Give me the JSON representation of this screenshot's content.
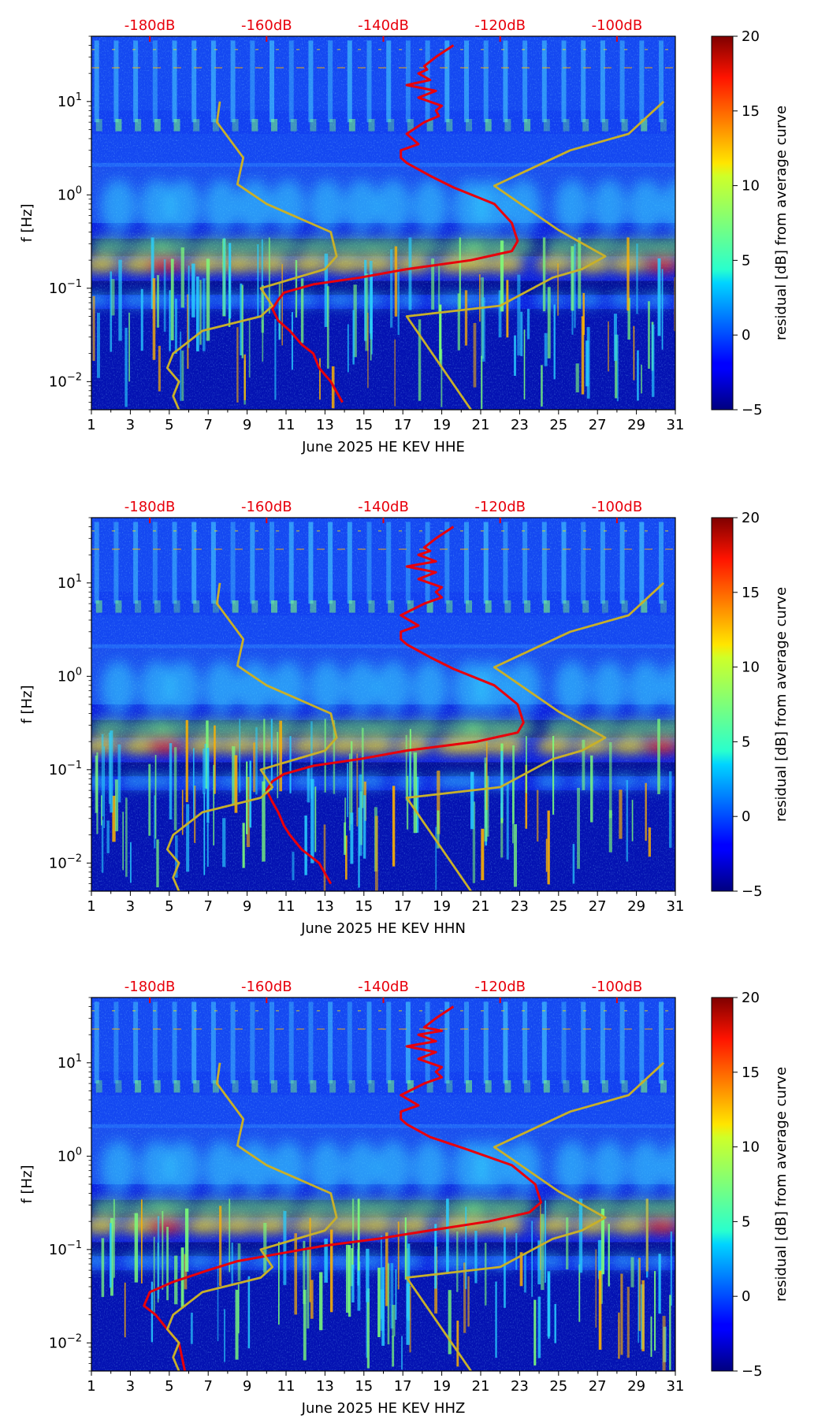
{
  "figure": {
    "colorbar": {
      "label": "residual [dB] from average curve",
      "min": -5,
      "max": 20,
      "ticks": [
        -5,
        0,
        5,
        10,
        15,
        20
      ],
      "tick_labels": [
        "−5",
        "0",
        "5",
        "10",
        "15",
        "20"
      ],
      "colormap": "jet"
    }
  },
  "chart_data": [
    {
      "type": "heatmap",
      "title": "",
      "xlabel": "June 2025 HE KEV  HHE",
      "ylabel": "f [Hz]",
      "x_range": [
        1,
        31
      ],
      "x_ticks": [
        1,
        3,
        5,
        7,
        9,
        11,
        13,
        15,
        17,
        19,
        21,
        23,
        25,
        27,
        29,
        31
      ],
      "y_scale": "log",
      "y_range": [
        0.005,
        50
      ],
      "y_ticks": [
        {
          "value": 0.01,
          "base": "10",
          "exp": "−2"
        },
        {
          "value": 0.1,
          "base": "10",
          "exp": "−1"
        },
        {
          "value": 1,
          "base": "10",
          "exp": "0"
        },
        {
          "value": 10,
          "base": "10",
          "exp": "1"
        }
      ],
      "top_axis": {
        "color": "#e8000b",
        "range_db": [
          -190,
          -90
        ],
        "ticks": [
          -180,
          -160,
          -140,
          -120,
          -100
        ],
        "tick_labels": [
          "-180dB",
          "-160dB",
          "-140dB",
          "-120dB",
          "-100dB"
        ]
      },
      "series": [
        {
          "name": "average PSD",
          "axis": "dB",
          "color": "#e8000b",
          "x": [
            -128,
            -131,
            -133,
            -132.5,
            -134,
            -132,
            -136,
            -131,
            -134,
            -130,
            -131,
            -130.5,
            -133,
            -136,
            -134,
            -137,
            -137,
            -136,
            -132,
            -128,
            -121,
            -118,
            -117,
            -118,
            -125,
            -136,
            -144,
            -152,
            -157,
            -158,
            -159,
            -158,
            -156,
            -154,
            -152,
            -151,
            -149,
            -147
          ],
          "y": [
            40,
            30,
            24,
            22,
            20,
            17,
            15,
            13,
            11,
            9,
            8,
            7,
            6,
            4.5,
            3.5,
            3,
            2.5,
            2.2,
            1.6,
            1.2,
            0.8,
            0.5,
            0.32,
            0.25,
            0.2,
            0.16,
            0.13,
            0.11,
            0.09,
            0.075,
            0.06,
            0.045,
            0.035,
            0.025,
            0.02,
            0.014,
            0.01,
            0.006
          ]
        },
        {
          "name": "reference low-noise curve",
          "axis": "dB",
          "color": "#c8b02a",
          "x": [
            -168,
            -168.5,
            -164,
            -165,
            -160,
            -149,
            -148,
            -150,
            -161,
            -159,
            -161,
            -171,
            -176,
            -177,
            -175,
            -176,
            -175
          ],
          "y": [
            10,
            6,
            2.5,
            1.3,
            0.8,
            0.4,
            0.22,
            0.16,
            0.1,
            0.065,
            0.05,
            0.035,
            0.02,
            0.014,
            0.01,
            0.007,
            0.005
          ]
        },
        {
          "name": "reference high-noise curve",
          "axis": "dB",
          "color": "#c8b02a",
          "x": [
            -92,
            -98,
            -108,
            -121,
            -110,
            -102,
            -106,
            -111,
            -120,
            -136,
            -125
          ],
          "y": [
            10,
            4.5,
            3,
            1.25,
            0.42,
            0.22,
            0.16,
            0.13,
            0.065,
            0.05,
            0.005
          ]
        }
      ]
    },
    {
      "type": "heatmap",
      "title": "",
      "xlabel": "June 2025 HE KEV  HHN",
      "ylabel": "f [Hz]",
      "x_range": [
        1,
        31
      ],
      "x_ticks": [
        1,
        3,
        5,
        7,
        9,
        11,
        13,
        15,
        17,
        19,
        21,
        23,
        25,
        27,
        29,
        31
      ],
      "y_scale": "log",
      "y_range": [
        0.005,
        50
      ],
      "y_ticks": [
        {
          "value": 0.01,
          "base": "10",
          "exp": "−2"
        },
        {
          "value": 0.1,
          "base": "10",
          "exp": "−1"
        },
        {
          "value": 1,
          "base": "10",
          "exp": "0"
        },
        {
          "value": 10,
          "base": "10",
          "exp": "1"
        }
      ],
      "top_axis": {
        "color": "#e8000b",
        "range_db": [
          -190,
          -90
        ],
        "ticks": [
          -180,
          -160,
          -140,
          -120,
          -100
        ],
        "tick_labels": [
          "-180dB",
          "-160dB",
          "-140dB",
          "-120dB",
          "-100dB"
        ]
      },
      "series": [
        {
          "name": "average PSD",
          "axis": "dB",
          "color": "#e8000b",
          "x": [
            -128,
            -131,
            -133,
            -132,
            -134,
            -131,
            -136,
            -131,
            -134,
            -130,
            -131,
            -130,
            -133,
            -137,
            -134,
            -137,
            -137,
            -136,
            -132,
            -128,
            -121,
            -117,
            -116,
            -117,
            -124,
            -136,
            -144,
            -152,
            -157,
            -159,
            -160,
            -159,
            -158,
            -157,
            -156,
            -154,
            -151,
            -149
          ],
          "y": [
            40,
            30,
            24,
            22,
            20,
            17,
            15,
            13,
            11,
            9,
            8,
            7,
            6,
            4.5,
            3.5,
            3,
            2.5,
            2.2,
            1.6,
            1.2,
            0.8,
            0.5,
            0.32,
            0.25,
            0.2,
            0.16,
            0.13,
            0.11,
            0.09,
            0.075,
            0.06,
            0.045,
            0.035,
            0.025,
            0.02,
            0.014,
            0.01,
            0.006
          ]
        },
        {
          "name": "reference low-noise curve",
          "axis": "dB",
          "color": "#c8b02a",
          "x": [
            -168,
            -168.5,
            -164,
            -165,
            -160,
            -149,
            -148,
            -150,
            -161,
            -159,
            -161,
            -171,
            -176,
            -177,
            -175,
            -176,
            -175
          ],
          "y": [
            10,
            6,
            2.5,
            1.3,
            0.8,
            0.4,
            0.22,
            0.16,
            0.1,
            0.065,
            0.05,
            0.035,
            0.02,
            0.014,
            0.01,
            0.007,
            0.005
          ]
        },
        {
          "name": "reference high-noise curve",
          "axis": "dB",
          "color": "#c8b02a",
          "x": [
            -92,
            -98,
            -108,
            -121,
            -110,
            -102,
            -106,
            -111,
            -120,
            -136,
            -125
          ],
          "y": [
            10,
            4.5,
            3,
            1.25,
            0.42,
            0.22,
            0.16,
            0.13,
            0.065,
            0.05,
            0.005
          ]
        }
      ]
    },
    {
      "type": "heatmap",
      "title": "",
      "xlabel": "June 2025 HE KEV  HHZ",
      "ylabel": "f [Hz]",
      "x_range": [
        1,
        31
      ],
      "x_ticks": [
        1,
        3,
        5,
        7,
        9,
        11,
        13,
        15,
        17,
        19,
        21,
        23,
        25,
        27,
        29,
        31
      ],
      "y_scale": "log",
      "y_range": [
        0.005,
        50
      ],
      "y_ticks": [
        {
          "value": 0.01,
          "base": "10",
          "exp": "−2"
        },
        {
          "value": 0.1,
          "base": "10",
          "exp": "−1"
        },
        {
          "value": 1,
          "base": "10",
          "exp": "0"
        },
        {
          "value": 10,
          "base": "10",
          "exp": "1"
        }
      ],
      "top_axis": {
        "color": "#e8000b",
        "range_db": [
          -190,
          -90
        ],
        "ticks": [
          -180,
          -160,
          -140,
          -120,
          -100
        ],
        "tick_labels": [
          "-180dB",
          "-160dB",
          "-140dB",
          "-120dB",
          "-100dB"
        ]
      },
      "series": [
        {
          "name": "average PSD",
          "axis": "dB",
          "color": "#e8000b",
          "x": [
            -128,
            -131,
            -133,
            -130,
            -134,
            -131,
            -136,
            -131,
            -134,
            -130,
            -131,
            -130,
            -133,
            -137,
            -134,
            -137,
            -137,
            -136,
            -132,
            -126,
            -118,
            -114,
            -113,
            -115,
            -122,
            -132,
            -141,
            -150,
            -158,
            -165,
            -170,
            -176,
            -180,
            -181,
            -179,
            -177,
            -175,
            -174
          ],
          "y": [
            40,
            30,
            24,
            22,
            20,
            17,
            15,
            13,
            11,
            9,
            8,
            7,
            6,
            4.5,
            3.5,
            3,
            2.5,
            2.2,
            1.6,
            1.2,
            0.8,
            0.5,
            0.32,
            0.25,
            0.2,
            0.16,
            0.13,
            0.11,
            0.09,
            0.075,
            0.06,
            0.045,
            0.035,
            0.025,
            0.02,
            0.014,
            0.01,
            0.005
          ]
        },
        {
          "name": "reference low-noise curve",
          "axis": "dB",
          "color": "#c8b02a",
          "x": [
            -168,
            -168.5,
            -164,
            -165,
            -160,
            -149,
            -148,
            -150,
            -161,
            -159,
            -161,
            -171,
            -176,
            -177,
            -175,
            -176,
            -175
          ],
          "y": [
            10,
            6,
            2.5,
            1.3,
            0.8,
            0.4,
            0.22,
            0.16,
            0.1,
            0.065,
            0.05,
            0.035,
            0.02,
            0.014,
            0.01,
            0.007,
            0.005
          ]
        },
        {
          "name": "reference high-noise curve",
          "axis": "dB",
          "color": "#c8b02a",
          "x": [
            -92,
            -98,
            -108,
            -121,
            -110,
            -102,
            -106,
            -111,
            -120,
            -136,
            -125
          ],
          "y": [
            10,
            4.5,
            3,
            1.25,
            0.42,
            0.22,
            0.16,
            0.13,
            0.065,
            0.05,
            0.005
          ]
        }
      ]
    }
  ]
}
